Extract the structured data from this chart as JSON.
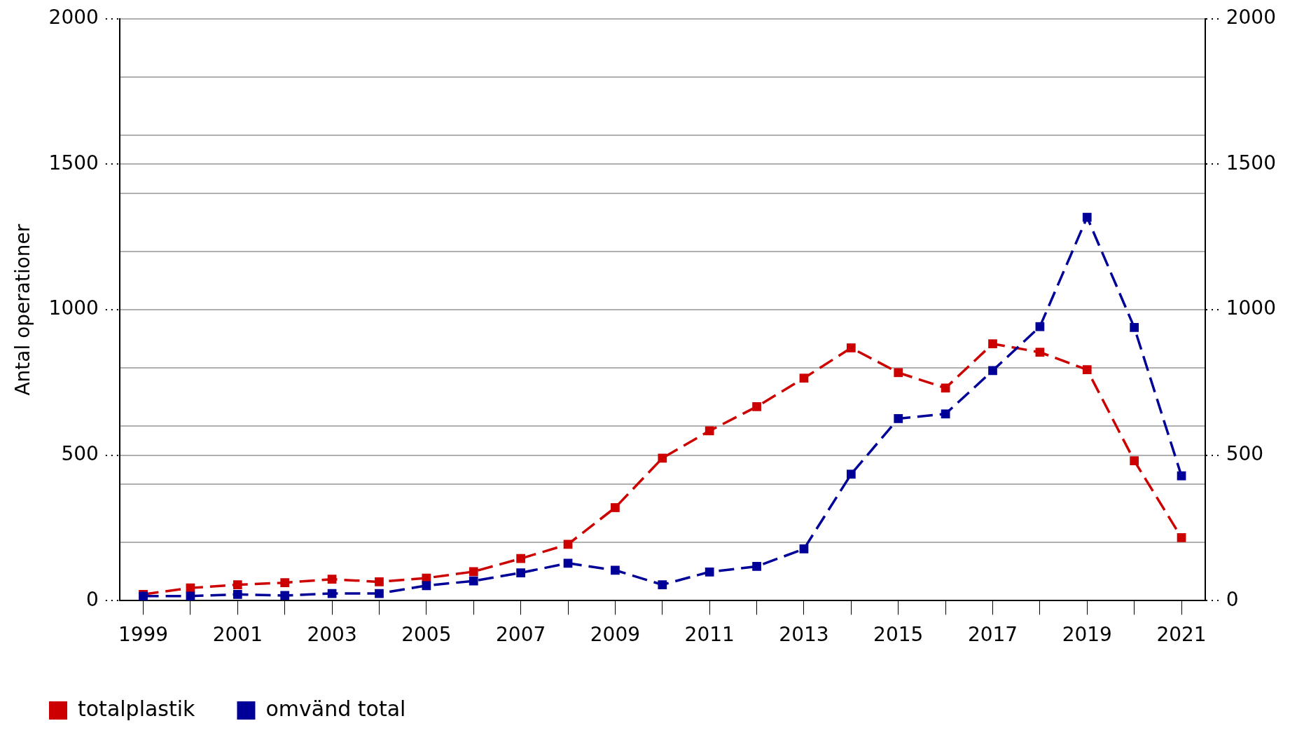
{
  "chart_data": {
    "type": "line",
    "ylabel": "Antal operationer",
    "categories": [
      "1999",
      null,
      "2001",
      null,
      "2003",
      null,
      "2005",
      null,
      "2007",
      null,
      "2009",
      null,
      "2011",
      null,
      "2013",
      null,
      "2015",
      null,
      "2017",
      null,
      "2019",
      null,
      "2021"
    ],
    "series": [
      {
        "name": "totalplastik",
        "color": "#cc0000",
        "values": [
          22,
          44,
          55,
          62,
          74,
          65,
          78,
          100,
          145,
          194,
          320,
          490,
          584,
          667,
          765,
          869,
          784,
          731,
          883,
          854,
          794,
          481,
          217
        ]
      },
      {
        "name": "omvänd total",
        "color": "#000099",
        "values": [
          16,
          16,
          22,
          18,
          25,
          25,
          52,
          68,
          96,
          129,
          105,
          55,
          99,
          118,
          178,
          435,
          626,
          642,
          791,
          942,
          1318,
          939,
          429
        ]
      }
    ],
    "ylim": [
      0,
      2000
    ],
    "yticks": [
      0,
      {
        "value": 200,
        "label": null
      },
      {
        "value": 400,
        "label": null
      },
      500,
      {
        "value": 600,
        "label": null
      },
      {
        "value": 800,
        "label": null
      },
      1000,
      {
        "value": 1200,
        "label": null
      },
      {
        "value": 1400,
        "label": null
      },
      1500,
      {
        "value": 1600,
        "label": null
      },
      {
        "value": 1800,
        "label": null
      },
      2000
    ],
    "y2lim": [
      0,
      2000
    ],
    "y2ticks": [
      0,
      500,
      1000,
      1500,
      2000
    ],
    "grid": "y",
    "legend": "bottom left",
    "marker": "square",
    "line_style": "dashed"
  }
}
